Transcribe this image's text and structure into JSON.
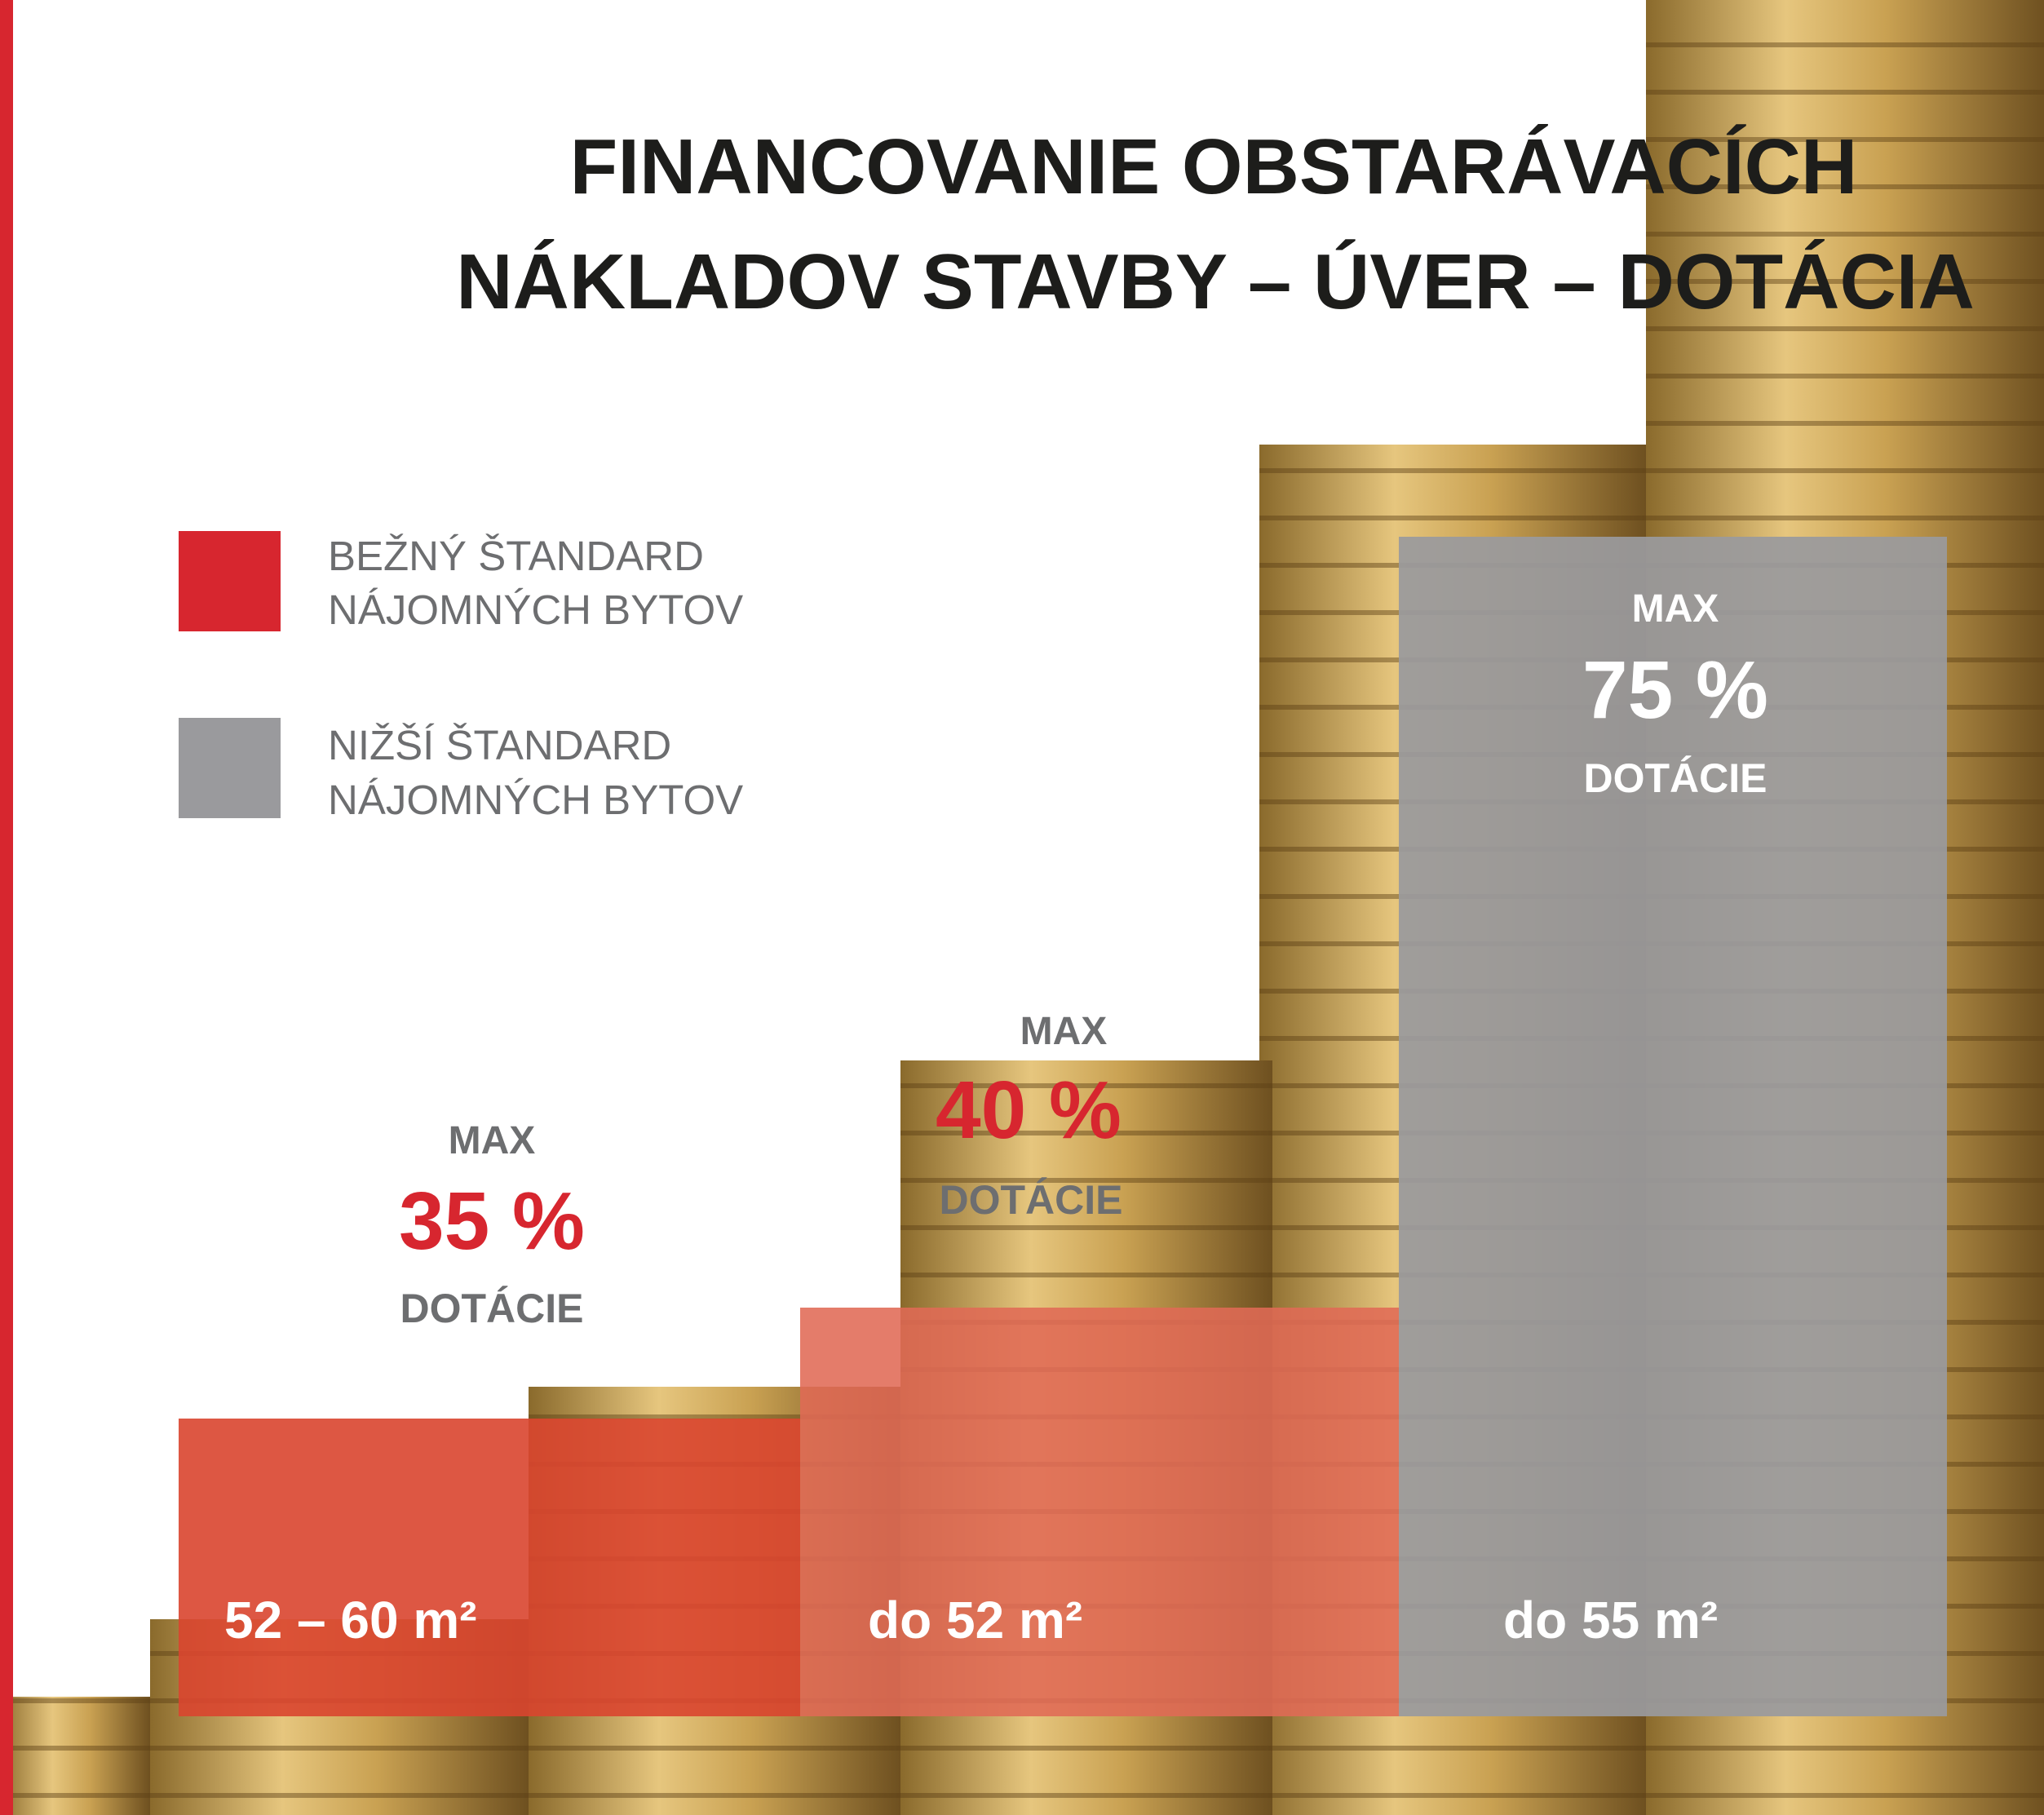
{
  "header": {
    "title_lines": [
      "FINANCOVANIE OBSTARÁVACÍCH",
      "NÁKLADOV STAVBY – ÚVER – DOTÁCIA"
    ]
  },
  "legend": [
    {
      "lines": [
        "BEŽNÝ ŠTANDARD",
        "NÁJOMNÝCH BYTOV"
      ]
    },
    {
      "lines": [
        "NIŽŠÍ ŠTANDARD",
        "NÁJOMNÝCH BYTOV"
      ]
    }
  ],
  "blocks": [
    {
      "prefix": "MAX",
      "value": "35 %",
      "suffix": "DOTÁCIE",
      "label": "52 – 60 m²"
    },
    {
      "prefix": "MAX",
      "value": "40 %",
      "suffix": "DOTÁCIE",
      "label": "do 52 m²"
    },
    {
      "prefix": "MAX",
      "value": "75 %",
      "suffix": "DOTÁCIE",
      "label": "do 55 m²"
    }
  ]
}
